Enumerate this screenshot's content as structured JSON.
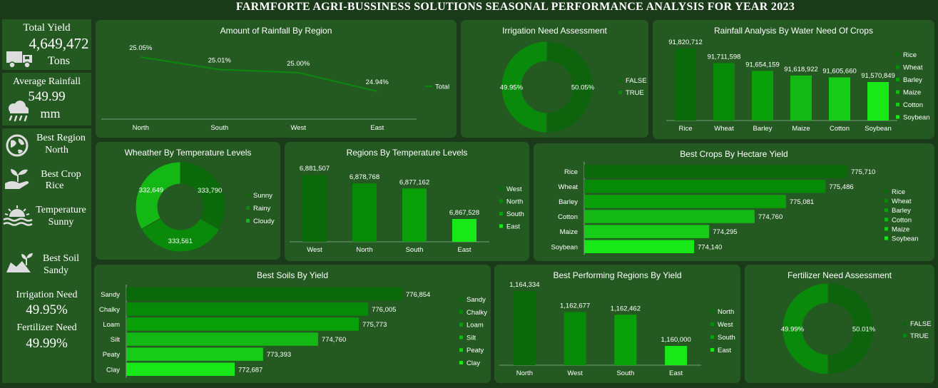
{
  "header": {
    "title": "FARMFORTE AGRI-BUSSINESS SOLUTIONS SEASONAL PERFORMANCE ANALYSIS FOR YEAR 2023"
  },
  "colors": {
    "c1": "#0b6b0b",
    "c2": "#078a07",
    "c3": "#0aa00a",
    "c4": "#14b814",
    "c5": "#16cc16",
    "c6": "#18e818",
    "panel": "#245a22",
    "bg": "#1b3a1a"
  },
  "kpis": {
    "total_yield": {
      "label": "Total Yield",
      "value": "4,649,472",
      "unit": "Tons",
      "icon": "truck-icon"
    },
    "avg_rainfall": {
      "label": "Average Rainfall",
      "value": "549.99",
      "unit": "mm",
      "icon": "rain-cloud-icon"
    },
    "best_region": {
      "label": "Best Region",
      "value": "North",
      "icon": "globe-icon"
    },
    "best_crop": {
      "label": "Best Crop",
      "value": "Rice",
      "icon": "seedling-hand-icon"
    },
    "temperature": {
      "label": "Temperature",
      "value": "Sunny",
      "icon": "sunrise-icon"
    },
    "best_soil": {
      "label": "Best Soil",
      "value": "Sandy",
      "icon": "soil-plant-icon"
    },
    "irrigation": {
      "label": "Irrigation Need",
      "value": "49.95%"
    },
    "fertilizer": {
      "label": "Fertilizer Need",
      "value": "49.99%"
    }
  },
  "chart_data": [
    {
      "id": "rainfall_region",
      "type": "line",
      "title": "Amount of Rainfall  By Region",
      "categories": [
        "North",
        "South",
        "West",
        "East"
      ],
      "values": [
        25.05,
        25.01,
        25.0,
        24.94
      ],
      "labels": [
        "25.05%",
        "25.01%",
        "25.00%",
        "24.94%"
      ],
      "legend": [
        "Total"
      ],
      "legend_position": "right"
    },
    {
      "id": "irrigation",
      "type": "pie",
      "title": "Irrigation Need Assessment",
      "categories": [
        "FALSE",
        "TRUE"
      ],
      "values": [
        50.05,
        49.95
      ],
      "labels": [
        "50.05%",
        "49.95%"
      ],
      "legend_position": "right"
    },
    {
      "id": "rain_crops",
      "type": "bar",
      "title": "Rainfall Analysis By Water Need Of Crops",
      "categories": [
        "Rice",
        "Wheat",
        "Barley",
        "Maize",
        "Cotton",
        "Soybean"
      ],
      "values": [
        91820712,
        91711598,
        91654159,
        91618922,
        91605660,
        91570849
      ],
      "labels": [
        "91,820,712",
        "91,711,598",
        "91,654,159",
        "91,618,922",
        "91,605,660",
        "91,570,849"
      ],
      "legend_position": "right"
    },
    {
      "id": "weather",
      "type": "pie",
      "title": "Wheather By Temperature Levels",
      "categories": [
        "Sunny",
        "Rainy",
        "Cloudy"
      ],
      "values": [
        333790,
        333561,
        332649
      ],
      "labels": [
        "333,790",
        "333,561",
        "332,649"
      ],
      "legend_position": "right"
    },
    {
      "id": "regions_temp",
      "type": "bar",
      "title": "Regions By Temperature Levels",
      "categories": [
        "West",
        "North",
        "South",
        "East"
      ],
      "values": [
        6881507,
        6878768,
        6877162,
        6867528
      ],
      "labels": [
        "6,881,507",
        "6,878,768",
        "6,877,162",
        "6,867,528"
      ],
      "legend_position": "right"
    },
    {
      "id": "crops_hectare",
      "type": "bar",
      "orientation": "horizontal",
      "title": "Best Crops By Hectare Yield",
      "categories": [
        "Rice",
        "Wheat",
        "Barley",
        "Cotton",
        "Maize",
        "Soybean"
      ],
      "values": [
        775710,
        775486,
        775081,
        774760,
        774295,
        774140
      ],
      "labels": [
        "775,710",
        "775,486",
        "775,081",
        "774,760",
        "774,295",
        "774,140"
      ],
      "legend": [
        "Rice",
        "Wheat",
        "Barley",
        "Cotton",
        "Maize",
        "Soybean"
      ],
      "legend_position": "right"
    },
    {
      "id": "soils",
      "type": "bar",
      "orientation": "horizontal",
      "title": "Best Soils By Yield",
      "categories": [
        "Sandy",
        "Chalky",
        "Loam",
        "Silt",
        "Peaty",
        "Clay"
      ],
      "values": [
        776854,
        776005,
        775773,
        774760,
        773393,
        772687
      ],
      "labels": [
        "776,854",
        "776,005",
        "775,773",
        "774,760",
        "773,393",
        "772,687"
      ],
      "legend_position": "right"
    },
    {
      "id": "regions_yield",
      "type": "bar",
      "title": "Best Performing Regions By Yield",
      "categories": [
        "North",
        "West",
        "South",
        "East"
      ],
      "values": [
        1164334,
        1162677,
        1162462,
        1160000
      ],
      "labels": [
        "1,164,334",
        "1,162,677",
        "1,162,462",
        "1,160,000"
      ],
      "legend_position": "right"
    },
    {
      "id": "fertilizer",
      "type": "pie",
      "title": "Fertilizer Need Assessment",
      "categories": [
        "FALSE",
        "TRUE"
      ],
      "values": [
        50.01,
        49.99
      ],
      "labels": [
        "50.01%",
        "49.99%"
      ],
      "legend_position": "right"
    }
  ]
}
